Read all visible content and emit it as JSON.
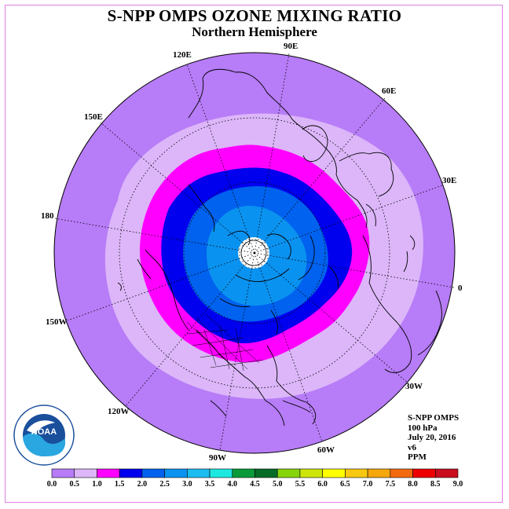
{
  "title": "S-NPP OMPS OZONE MIXING RATIO",
  "subtitle": "Northern Hemisphere",
  "info": {
    "instrument": "S-NPP OMPS",
    "level": "100 hPa",
    "date": "July 20, 2016",
    "version": "v6",
    "units": "PPM"
  },
  "longitude_labels": [
    "90E",
    "60E",
    "30E",
    "0",
    "30W",
    "60W",
    "90W",
    "120W",
    "150W",
    "180",
    "150E",
    "120E"
  ],
  "colorbar": {
    "ticks": [
      "0.0",
      "0.5",
      "1.0",
      "1.5",
      "2.0",
      "2.5",
      "3.0",
      "3.5",
      "4.0",
      "4.5",
      "5.0",
      "5.5",
      "6.0",
      "6.5",
      "7.0",
      "7.5",
      "8.0",
      "8.5",
      "9.0"
    ],
    "colors": [
      "#b77cf7",
      "#dcb6f9",
      "#ff00ff",
      "#0000ee",
      "#0062ee",
      "#0a92f0",
      "#1cbcf0",
      "#1de8e0",
      "#0a9a3a",
      "#066b26",
      "#86d40c",
      "#cde60a",
      "#ffff00",
      "#f9c810",
      "#f6a70c",
      "#f36a0e",
      "#ee0000",
      "#c80e1e",
      "#8b5a3c"
    ]
  },
  "logo": {
    "name": "noaa-logo",
    "text": "NOAA",
    "ring_text": "NATIONAL OCEANIC AND ATMOSPHERIC ADMINISTRATION · U.S. DEPARTMENT OF COMMERCE"
  },
  "colors": {
    "frame": "#e27fe2",
    "outer": "#b77cf7",
    "light": "#dcb6f9",
    "magenta": "#ff00ff",
    "blue": "#0000ee",
    "mid_blue": "#0062ee",
    "light_blue": "#0a92f0"
  }
}
